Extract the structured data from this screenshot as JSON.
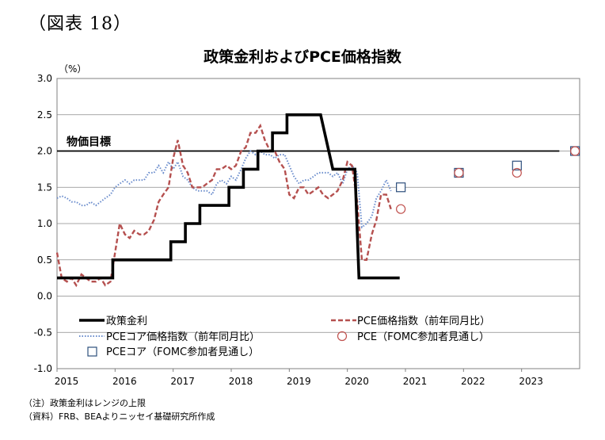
{
  "figure_label": "（図表 18）",
  "unit": "（%）",
  "notes": {
    "note1": "（注）政策金利はレンジの上限",
    "note2": "（資料）FRB、BEAよりニッセイ基礎研究所作成"
  },
  "chart_data": {
    "type": "line",
    "title": "政策金利およびPCE価格指数",
    "xlabel": "",
    "ylabel": "",
    "ylim": [
      -1.0,
      3.0
    ],
    "xlim": [
      2015.0,
      2024.0
    ],
    "yticks": [
      "3.0",
      "2.5",
      "2.0",
      "1.5",
      "1.0",
      "0.5",
      "0.0",
      "-0.5",
      "-1.0"
    ],
    "xticks": [
      "2015",
      "2016",
      "2017",
      "2018",
      "2019",
      "2020",
      "2021",
      "2022",
      "2023"
    ],
    "grid": true,
    "reference_line": {
      "label": "物価目標",
      "value": 2.0
    },
    "series": [
      {
        "name": "政策金利",
        "style": "solid-thick",
        "color": "#000000",
        "points": [
          [
            2015.0,
            0.25
          ],
          [
            2015.96,
            0.25
          ],
          [
            2015.96,
            0.5
          ],
          [
            2016.96,
            0.5
          ],
          [
            2016.96,
            0.75
          ],
          [
            2017.21,
            0.75
          ],
          [
            2017.21,
            1.0
          ],
          [
            2017.46,
            1.0
          ],
          [
            2017.46,
            1.25
          ],
          [
            2017.96,
            1.25
          ],
          [
            2017.96,
            1.5
          ],
          [
            2018.21,
            1.5
          ],
          [
            2018.21,
            1.75
          ],
          [
            2018.46,
            1.75
          ],
          [
            2018.46,
            2.0
          ],
          [
            2018.71,
            2.0
          ],
          [
            2018.71,
            2.25
          ],
          [
            2018.96,
            2.25
          ],
          [
            2018.96,
            2.5
          ],
          [
            2019.54,
            2.5
          ],
          [
            2019.75,
            1.75
          ],
          [
            2020.13,
            1.75
          ],
          [
            2020.2,
            0.25
          ],
          [
            2020.9,
            0.25
          ]
        ]
      },
      {
        "name": "PCE価格指数（前年同月比）",
        "style": "dashed",
        "color": "#b5504f",
        "points": [
          [
            2015.0,
            0.6
          ],
          [
            2015.08,
            0.25
          ],
          [
            2015.17,
            0.2
          ],
          [
            2015.25,
            0.25
          ],
          [
            2015.33,
            0.15
          ],
          [
            2015.42,
            0.3
          ],
          [
            2015.5,
            0.25
          ],
          [
            2015.58,
            0.2
          ],
          [
            2015.67,
            0.2
          ],
          [
            2015.75,
            0.25
          ],
          [
            2015.83,
            0.15
          ],
          [
            2015.92,
            0.2
          ],
          [
            2016.0,
            0.6
          ],
          [
            2016.08,
            1.0
          ],
          [
            2016.17,
            0.85
          ],
          [
            2016.25,
            0.8
          ],
          [
            2016.33,
            0.9
          ],
          [
            2016.42,
            0.85
          ],
          [
            2016.5,
            0.85
          ],
          [
            2016.58,
            0.9
          ],
          [
            2016.67,
            1.05
          ],
          [
            2016.75,
            1.3
          ],
          [
            2016.83,
            1.4
          ],
          [
            2016.92,
            1.5
          ],
          [
            2017.0,
            1.9
          ],
          [
            2017.08,
            2.15
          ],
          [
            2017.17,
            1.8
          ],
          [
            2017.25,
            1.7
          ],
          [
            2017.33,
            1.5
          ],
          [
            2017.42,
            1.5
          ],
          [
            2017.5,
            1.5
          ],
          [
            2017.58,
            1.55
          ],
          [
            2017.67,
            1.6
          ],
          [
            2017.75,
            1.75
          ],
          [
            2017.83,
            1.75
          ],
          [
            2017.92,
            1.8
          ],
          [
            2018.0,
            1.75
          ],
          [
            2018.08,
            1.8
          ],
          [
            2018.17,
            2.0
          ],
          [
            2018.25,
            2.05
          ],
          [
            2018.33,
            2.25
          ],
          [
            2018.42,
            2.25
          ],
          [
            2018.5,
            2.35
          ],
          [
            2018.58,
            2.15
          ],
          [
            2018.67,
            2.0
          ],
          [
            2018.75,
            2.0
          ],
          [
            2018.83,
            1.85
          ],
          [
            2018.92,
            1.75
          ],
          [
            2019.0,
            1.4
          ],
          [
            2019.08,
            1.35
          ],
          [
            2019.17,
            1.5
          ],
          [
            2019.25,
            1.5
          ],
          [
            2019.33,
            1.4
          ],
          [
            2019.42,
            1.45
          ],
          [
            2019.5,
            1.5
          ],
          [
            2019.58,
            1.4
          ],
          [
            2019.67,
            1.35
          ],
          [
            2019.75,
            1.4
          ],
          [
            2019.83,
            1.45
          ],
          [
            2019.92,
            1.6
          ],
          [
            2020.0,
            1.85
          ],
          [
            2020.08,
            1.8
          ],
          [
            2020.17,
            1.3
          ],
          [
            2020.25,
            0.5
          ],
          [
            2020.33,
            0.5
          ],
          [
            2020.42,
            0.85
          ],
          [
            2020.5,
            1.05
          ],
          [
            2020.58,
            1.4
          ],
          [
            2020.67,
            1.4
          ],
          [
            2020.75,
            1.2
          ]
        ]
      },
      {
        "name": "PCEコア価格指数（前年同月比）",
        "style": "dotted",
        "color": "#6a8ccc",
        "points": [
          [
            2015.0,
            1.35
          ],
          [
            2015.08,
            1.38
          ],
          [
            2015.17,
            1.35
          ],
          [
            2015.25,
            1.3
          ],
          [
            2015.33,
            1.3
          ],
          [
            2015.42,
            1.25
          ],
          [
            2015.5,
            1.25
          ],
          [
            2015.58,
            1.3
          ],
          [
            2015.67,
            1.25
          ],
          [
            2015.75,
            1.3
          ],
          [
            2015.83,
            1.35
          ],
          [
            2015.92,
            1.4
          ],
          [
            2016.0,
            1.5
          ],
          [
            2016.08,
            1.55
          ],
          [
            2016.17,
            1.6
          ],
          [
            2016.25,
            1.55
          ],
          [
            2016.33,
            1.6
          ],
          [
            2016.42,
            1.6
          ],
          [
            2016.5,
            1.6
          ],
          [
            2016.58,
            1.7
          ],
          [
            2016.67,
            1.7
          ],
          [
            2016.75,
            1.8
          ],
          [
            2016.83,
            1.7
          ],
          [
            2016.92,
            1.85
          ],
          [
            2017.0,
            1.75
          ],
          [
            2017.08,
            1.85
          ],
          [
            2017.17,
            1.65
          ],
          [
            2017.25,
            1.6
          ],
          [
            2017.33,
            1.5
          ],
          [
            2017.42,
            1.45
          ],
          [
            2017.5,
            1.45
          ],
          [
            2017.58,
            1.45
          ],
          [
            2017.67,
            1.4
          ],
          [
            2017.75,
            1.55
          ],
          [
            2017.83,
            1.6
          ],
          [
            2017.92,
            1.55
          ],
          [
            2018.0,
            1.65
          ],
          [
            2018.08,
            1.6
          ],
          [
            2018.17,
            1.75
          ],
          [
            2018.25,
            1.9
          ],
          [
            2018.33,
            2.0
          ],
          [
            2018.42,
            1.95
          ],
          [
            2018.5,
            2.0
          ],
          [
            2018.58,
            1.95
          ],
          [
            2018.67,
            1.95
          ],
          [
            2018.75,
            1.9
          ],
          [
            2018.83,
            1.95
          ],
          [
            2018.92,
            1.95
          ],
          [
            2019.0,
            1.8
          ],
          [
            2019.08,
            1.65
          ],
          [
            2019.17,
            1.55
          ],
          [
            2019.25,
            1.6
          ],
          [
            2019.33,
            1.6
          ],
          [
            2019.42,
            1.65
          ],
          [
            2019.5,
            1.7
          ],
          [
            2019.58,
            1.7
          ],
          [
            2019.67,
            1.7
          ],
          [
            2019.75,
            1.65
          ],
          [
            2019.83,
            1.7
          ],
          [
            2019.92,
            1.55
          ],
          [
            2020.0,
            1.75
          ],
          [
            2020.08,
            1.8
          ],
          [
            2020.17,
            1.7
          ],
          [
            2020.25,
            0.95
          ],
          [
            2020.33,
            1.0
          ],
          [
            2020.42,
            1.1
          ],
          [
            2020.5,
            1.35
          ],
          [
            2020.58,
            1.45
          ],
          [
            2020.67,
            1.6
          ],
          [
            2020.75,
            1.45
          ]
        ]
      }
    ],
    "projections": [
      {
        "name": "PCEコア（FOMC参加者見通し）",
        "marker": "square",
        "color": "#2d4f7c",
        "points": [
          [
            2020.92,
            1.5
          ],
          [
            2021.92,
            1.7
          ],
          [
            2022.92,
            1.8
          ],
          [
            2023.92,
            2.0
          ]
        ]
      },
      {
        "name": "PCE（FOMC参加者見通し）",
        "marker": "circle",
        "color": "#c0504d",
        "points": [
          [
            2020.92,
            1.2
          ],
          [
            2021.92,
            1.7
          ],
          [
            2022.92,
            1.7
          ],
          [
            2023.92,
            2.0
          ]
        ]
      }
    ],
    "legend_placement": "bottom-inside"
  }
}
